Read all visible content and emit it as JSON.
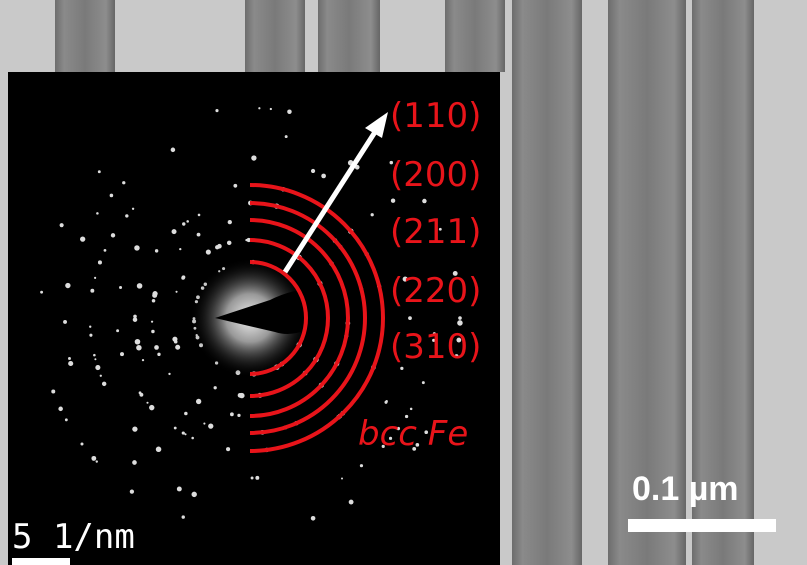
{
  "inset": {
    "planes": [
      "(110)",
      "(200)",
      "(211)",
      "(220)",
      "(310)"
    ],
    "phase": "bcc Fe",
    "scale": "5 1/nm"
  },
  "image": {
    "scale": "0.1 µm"
  }
}
